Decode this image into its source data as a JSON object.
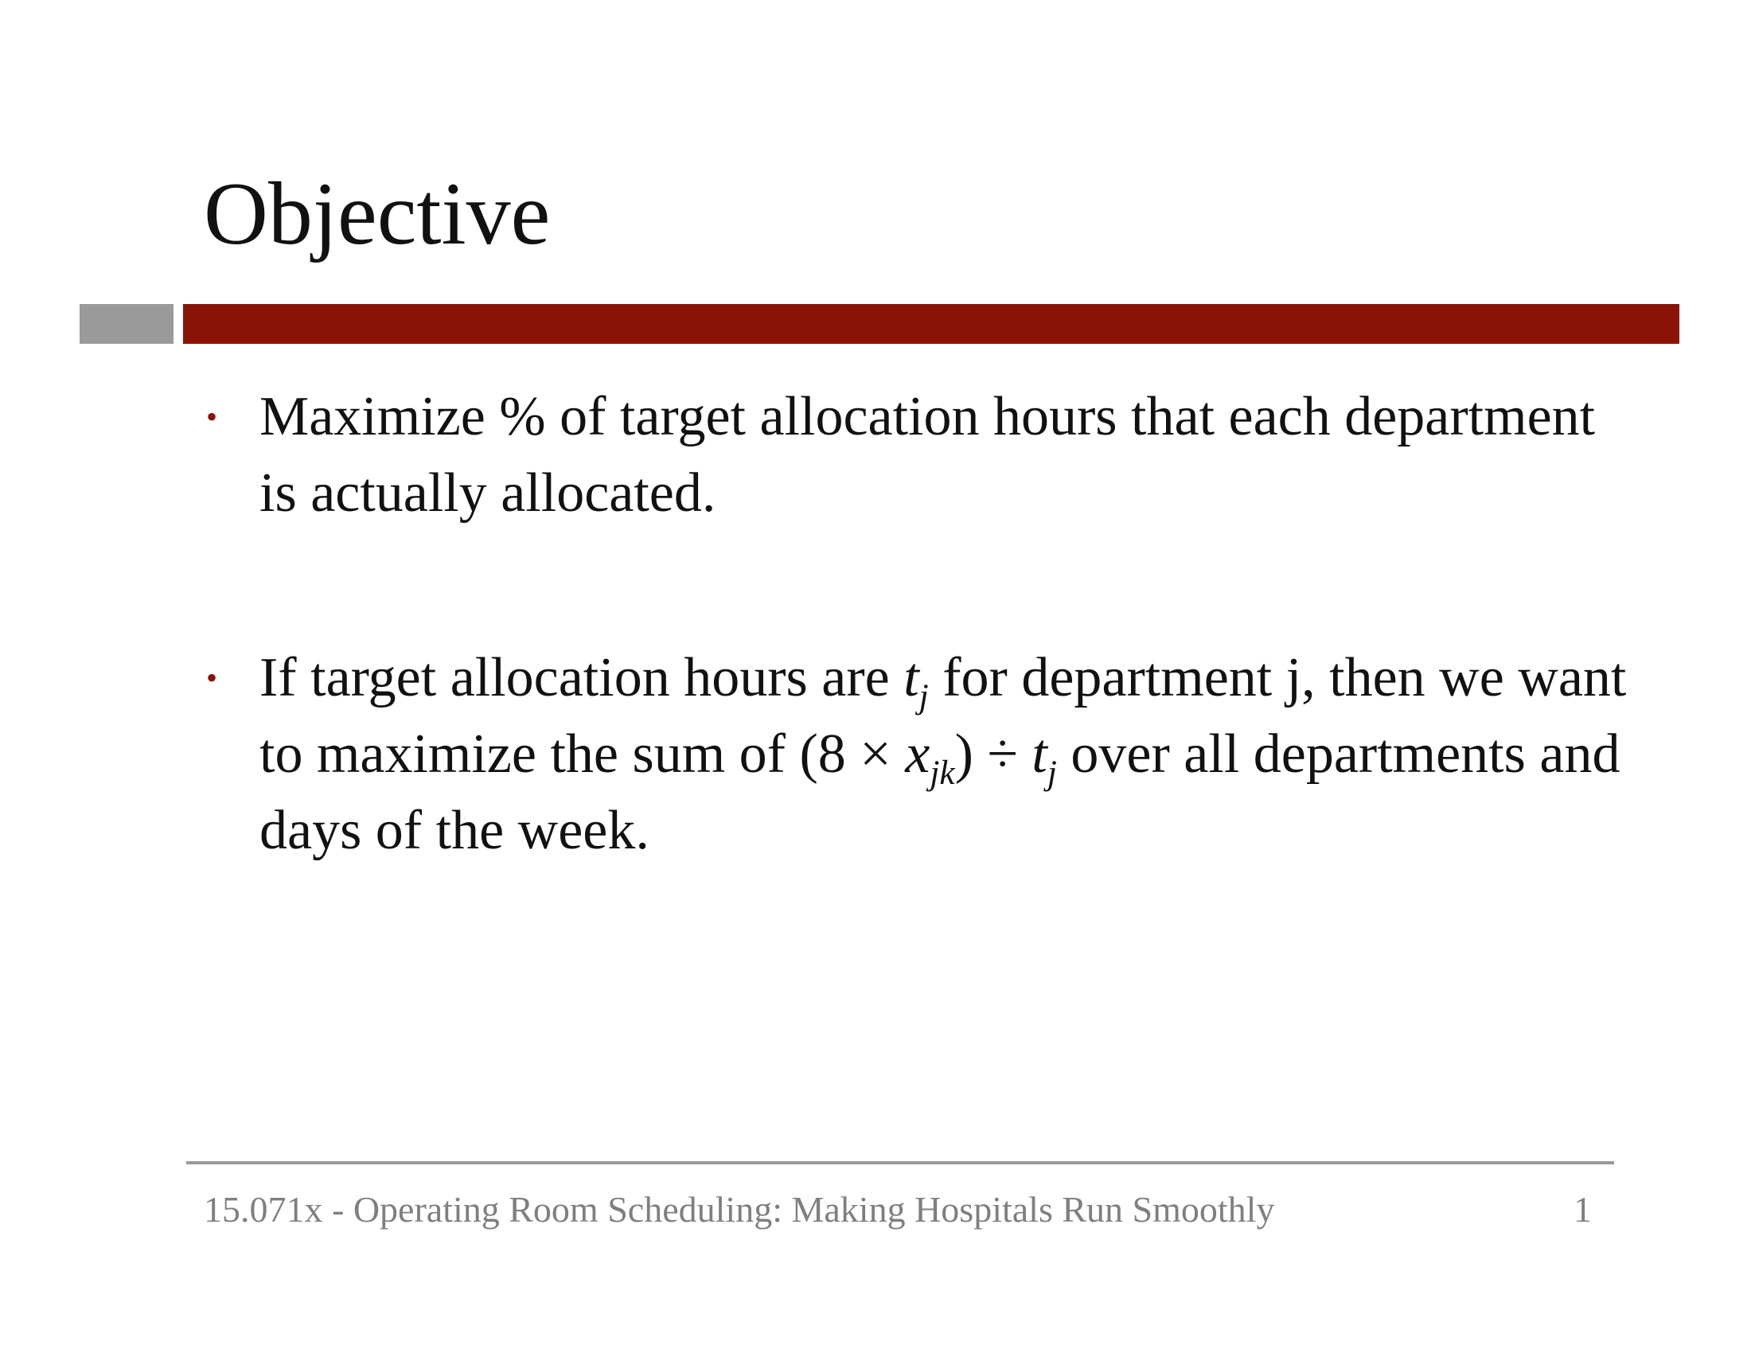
{
  "title": "Objective",
  "colors": {
    "accent_red": "#8a1307",
    "accent_gray": "#9a9a9a",
    "text": "#111111",
    "footer_text": "#7f7f7f"
  },
  "bullet_symbol": "•",
  "bullets": [
    {
      "text": "Maximize % of target allocation hours that each department is actually allocated."
    },
    {
      "text_1": "If target allocation hours are ",
      "var_t": "t",
      "sub_j": "j",
      "text_2": " for department j, then we want to maximize the sum of (8 × ",
      "var_x": "x",
      "sub_jk": "jk",
      "text_3": ") ÷ ",
      "var_t2": "t",
      "sub_j2": "j",
      "text_4": " over all departments and days of the week."
    }
  ],
  "footer": {
    "text": "15.071x - Operating Room Scheduling: Making Hospitals Run Smoothly",
    "page_number": "1"
  }
}
